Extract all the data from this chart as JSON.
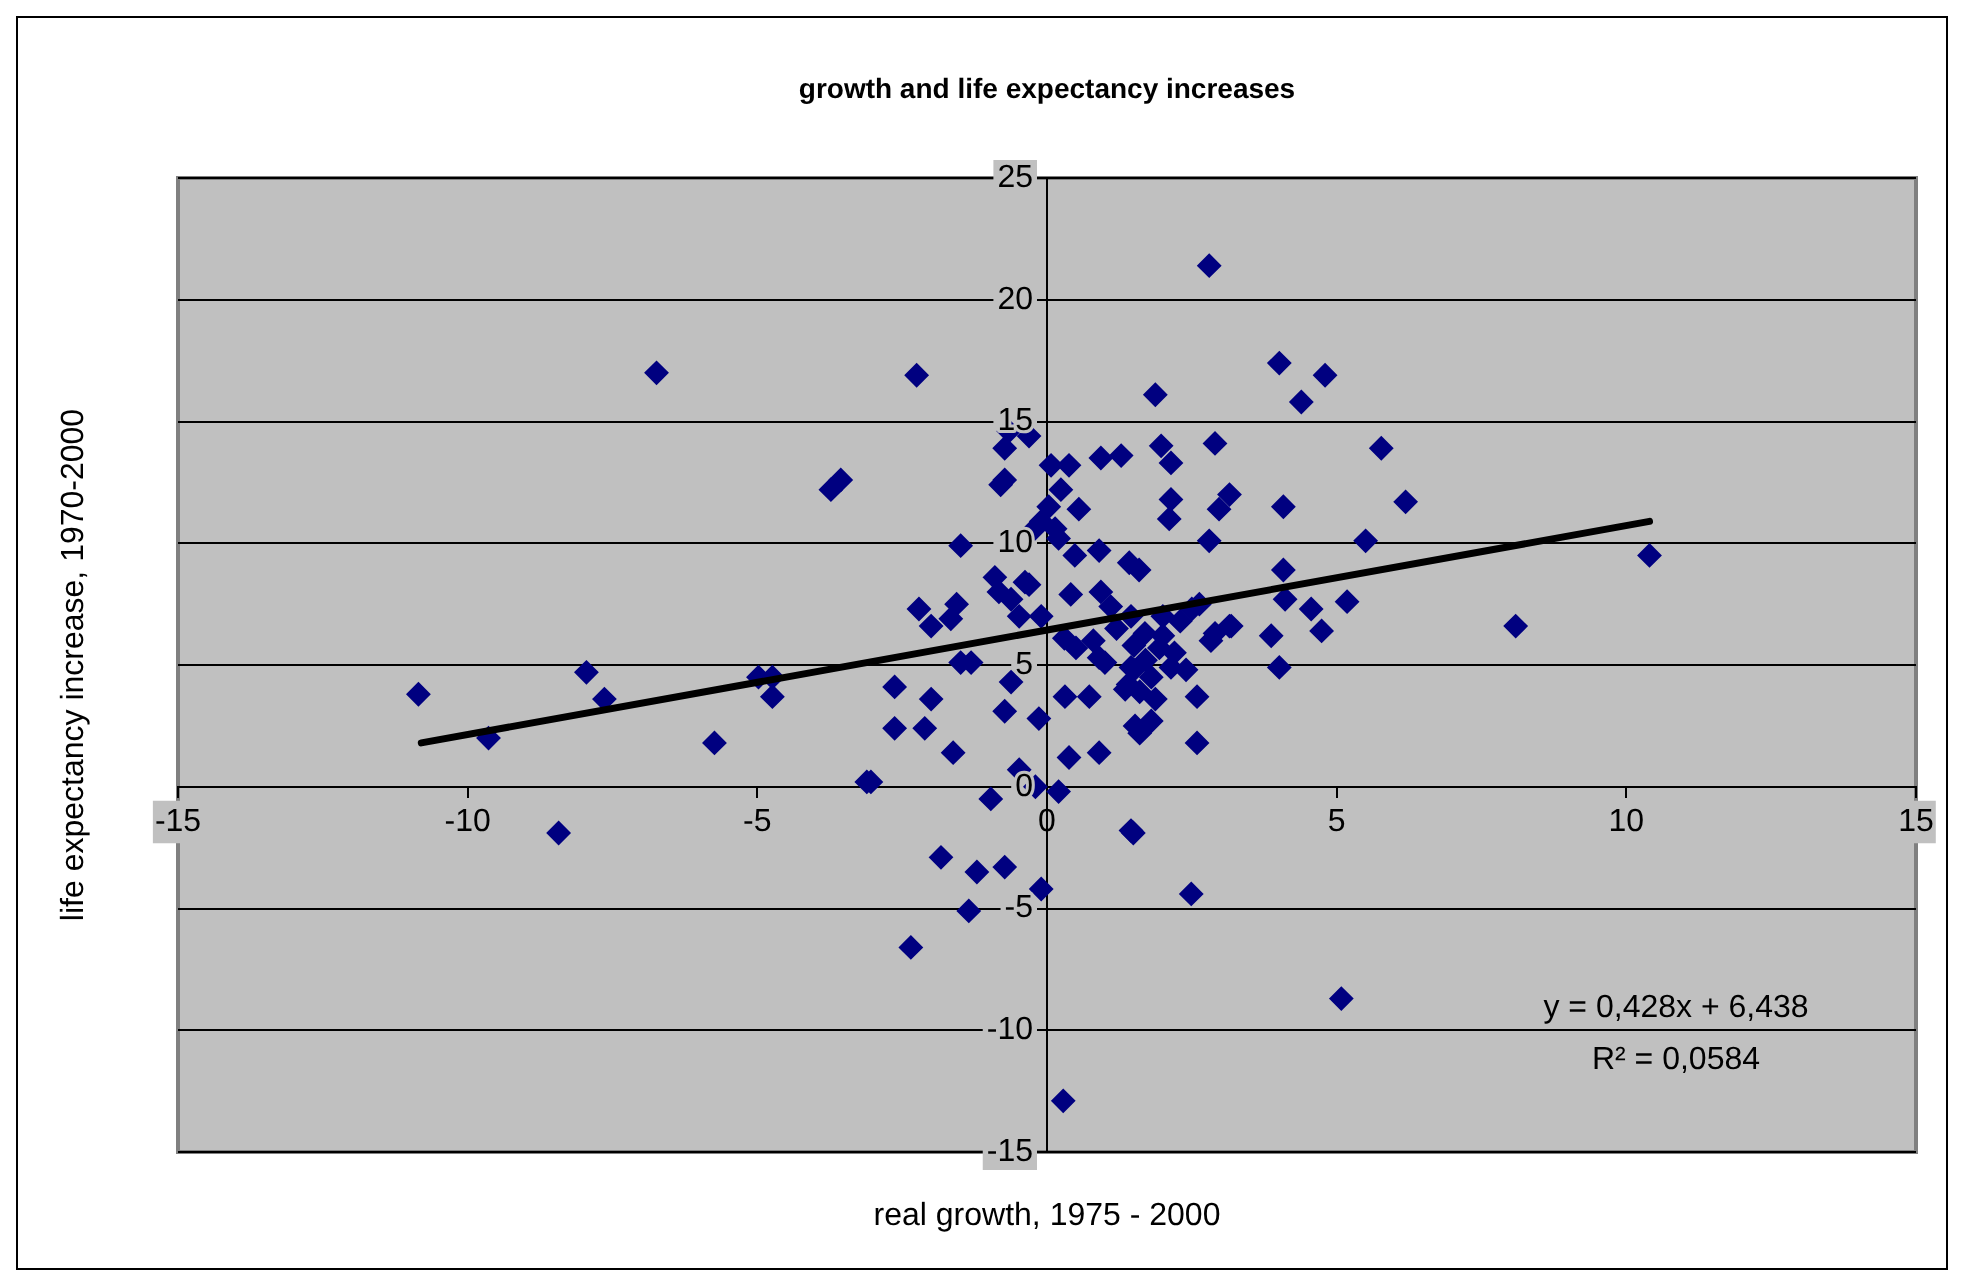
{
  "chart_data": {
    "type": "scatter",
    "title": "growth and life expectancy increases",
    "xlabel": "real growth, 1975 - 2000",
    "ylabel": "life expectancy increase, 1970-2000",
    "xlim": [
      -15,
      15
    ],
    "xticks": [
      -15,
      -10,
      -5,
      0,
      5,
      10,
      15
    ],
    "ylim": [
      -15,
      25
    ],
    "yticks": [
      -15,
      -10,
      -5,
      0,
      5,
      10,
      15,
      20,
      25
    ],
    "grid": "y",
    "legend": false,
    "annotations": [
      "y = 0,428x + 6,438",
      "R² = 0,0584"
    ],
    "series": [
      {
        "type": "scatter",
        "color": "#000080",
        "marker": "diamond",
        "x": [
          -10.85,
          -9.64,
          -8.43,
          -7.95,
          -7.64,
          -6.74,
          -5.74,
          -4.98,
          -4.74,
          -4.74,
          -3.73,
          -3.56,
          -3.11,
          -2.63,
          -2.63,
          -2.25,
          -2.21,
          -2.0,
          -1.66,
          -2.11,
          -2.0,
          -1.62,
          -1.49,
          -1.49,
          -1.31,
          -1.83,
          -1.21,
          -0.73,
          -1.35,
          -2.35,
          -0.1,
          1.49,
          2.49,
          5.08,
          0.28,
          -0.48,
          -0.97,
          -0.2,
          0.2,
          1.45,
          -3.04,
          -0.73,
          -0.14,
          -0.62,
          0.31,
          0.73,
          0.38,
          0.9,
          1.52,
          1.35,
          1.87,
          2.59,
          2.59,
          -1.56,
          -0.83,
          -0.31,
          -0.1,
          0.41,
          0.93,
          1.45,
          1.69,
          1.94,
          1.0,
          1.45,
          2.14,
          2.83,
          3.15,
          2.63,
          -0.48,
          2.8,
          1.87,
          -0.66,
          -0.31,
          -0.73,
          -0.73,
          0.07,
          0.38,
          0.93,
          1.28,
          1.97,
          2.14,
          2.9,
          3.15,
          2.97,
          2.14,
          2.11,
          2.8,
          0.24,
          0.03,
          0.55,
          -0.21,
          0.14,
          -0.9,
          -0.38,
          0.48,
          0.9,
          1.42,
          1.59,
          -0.62,
          4.01,
          4.8,
          4.39,
          5.77,
          4.08,
          6.19,
          5.5,
          4.08,
          4.11,
          4.56,
          4.74,
          5.18,
          3.87,
          4.01,
          8.09,
          10.4,
          2.9,
          3.18,
          1.2,
          1.5,
          1.7,
          1.8,
          2.0,
          2.2,
          2.4,
          1.4,
          2.0,
          1.1,
          0.8,
          2.3,
          1.6,
          2.5,
          1.5,
          1.6,
          1.8,
          0.5,
          0.9,
          0.3,
          0.2,
          -0.1,
          -0.8
        ],
        "values": [
          3.8,
          2.0,
          -1.9,
          4.7,
          3.6,
          17.0,
          1.8,
          4.5,
          4.5,
          3.7,
          12.2,
          12.6,
          0.2,
          4.1,
          2.4,
          16.9,
          7.3,
          6.6,
          6.9,
          2.4,
          3.6,
          1.4,
          9.9,
          5.1,
          5.1,
          -2.9,
          -3.5,
          -3.3,
          -5.1,
          -6.6,
          -4.2,
          -1.9,
          -4.4,
          -8.7,
          -12.9,
          0.7,
          -0.5,
          0.0,
          -0.2,
          -1.8,
          0.2,
          3.1,
          2.8,
          4.3,
          3.7,
          3.7,
          1.2,
          1.4,
          2.5,
          4.0,
          3.6,
          3.7,
          1.8,
          7.5,
          8.0,
          8.3,
          7.0,
          7.9,
          8.0,
          7.0,
          6.3,
          5.7,
          5.1,
          4.9,
          4.9,
          6.0,
          6.6,
          7.5,
          7.0,
          21.4,
          16.1,
          14.6,
          14.4,
          13.9,
          12.6,
          13.2,
          13.2,
          13.5,
          13.6,
          14.0,
          13.3,
          14.1,
          12.0,
          11.4,
          11.8,
          11.0,
          10.1,
          12.2,
          11.5,
          11.4,
          10.6,
          10.6,
          8.6,
          8.4,
          9.5,
          9.7,
          9.2,
          8.9,
          7.7,
          17.4,
          16.9,
          15.8,
          13.9,
          11.5,
          11.7,
          10.1,
          8.9,
          7.7,
          7.3,
          6.4,
          7.6,
          6.2,
          4.9,
          6.6,
          9.5,
          6.3,
          6.6,
          6.5,
          5.8,
          5.2,
          4.5,
          6.2,
          5.5,
          4.8,
          4.2,
          7.0,
          7.4,
          6.0,
          6.8,
          3.9,
          7.3,
          4.8,
          2.2,
          2.7,
          5.7,
          5.3,
          6.1,
          10.2,
          10.9,
          12.4
        ]
      },
      {
        "type": "line",
        "color": "#000000",
        "marker": "none",
        "x": [
          -10.8,
          10.4
        ],
        "values": [
          1.8,
          10.9
        ]
      }
    ]
  }
}
